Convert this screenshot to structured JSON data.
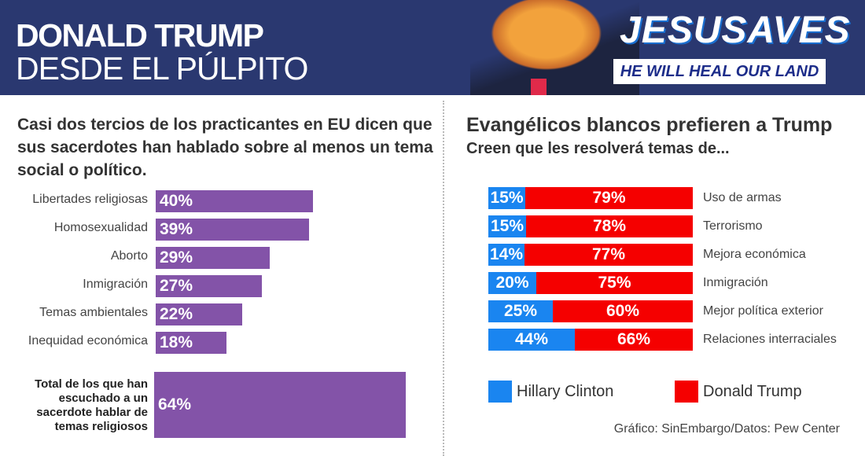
{
  "header": {
    "title_bold": "DONALD TRUMP",
    "title_light": "DESDE EL PÚLPITO",
    "logo_text": "JESUSAVES",
    "logo_subtext": "HE WILL HEAL OUR LAND"
  },
  "colors": {
    "header_bg": "#2a3870",
    "purple": "#8353a8",
    "clinton": "#1a85f0",
    "trump": "#f50000"
  },
  "chart_data": [
    {
      "type": "bar",
      "orientation": "horizontal",
      "title": "Casi dos tercios de los practicantes en EU dicen que sus sacerdotes han hablado sobre al menos un tema social o político.",
      "categories": [
        "Libertades religiosas",
        "Homosexualidad",
        "Aborto",
        "Inmigración",
        "Temas ambientales",
        "Inequidad económica"
      ],
      "values": [
        40,
        39,
        29,
        27,
        22,
        18
      ],
      "labels": [
        "40%",
        "39%",
        "29%",
        "27%",
        "22%",
        "18%"
      ],
      "total": {
        "label": "Total de los que han escuchado a un sacerdote hablar de temas religiosos",
        "value": 64,
        "text": "64%"
      }
    },
    {
      "type": "bar",
      "orientation": "horizontal",
      "stacked": true,
      "title": "Evangélicos blancos prefieren a Trump",
      "subtitle": "Creen que les resolverá temas de...",
      "categories": [
        "Uso de armas",
        "Terrorismo",
        "Mejora económica",
        "Inmigración",
        "Mejor política exterior",
        "Relaciones interraciales"
      ],
      "series": [
        {
          "name": "Hillary Clinton",
          "values": [
            15,
            15,
            14,
            20,
            25,
            44
          ],
          "color": "#1a85f0"
        },
        {
          "name": "Donald Trump",
          "values": [
            79,
            78,
            77,
            75,
            60,
            66
          ],
          "color": "#f50000"
        }
      ],
      "legend": "bottom"
    }
  ],
  "source": "Gráfico: SinEmbargo/Datos: Pew Center"
}
